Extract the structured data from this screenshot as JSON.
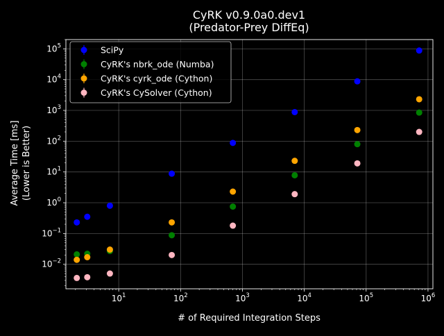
{
  "chart_data": {
    "type": "scatter",
    "title": "CyRK v0.9.0a0.dev1",
    "subtitle": "(Predator-Prey DiffEq)",
    "xlabel": "# of Required Integration Steps",
    "ylabel_line1": "Average Time [ms]",
    "ylabel_line2": "(Lower is Better)",
    "xscale": "log",
    "yscale": "log",
    "xlim": [
      1.4,
      1200000
    ],
    "ylim": [
      0.0016,
      200000
    ],
    "xticks": [
      {
        "value": 10,
        "base": "10",
        "exp": "1"
      },
      {
        "value": 100,
        "base": "10",
        "exp": "2"
      },
      {
        "value": 1000,
        "base": "10",
        "exp": "3"
      },
      {
        "value": 10000,
        "base": "10",
        "exp": "4"
      },
      {
        "value": 100000,
        "base": "10",
        "exp": "5"
      },
      {
        "value": 1000000,
        "base": "10",
        "exp": "6"
      }
    ],
    "yticks": [
      {
        "value": 0.01,
        "base": "10",
        "exp": "−2"
      },
      {
        "value": 0.1,
        "base": "10",
        "exp": "−1"
      },
      {
        "value": 1,
        "base": "10",
        "exp": "0"
      },
      {
        "value": 10,
        "base": "10",
        "exp": "1"
      },
      {
        "value": 100,
        "base": "10",
        "exp": "2"
      },
      {
        "value": 1000,
        "base": "10",
        "exp": "3"
      },
      {
        "value": 10000,
        "base": "10",
        "exp": "4"
      },
      {
        "value": 100000,
        "base": "10",
        "exp": "5"
      }
    ],
    "grid": true,
    "legend_position": "top-left",
    "series": [
      {
        "name": "SciPy",
        "color": "#0000ff",
        "points": [
          [
            2.1,
            0.23
          ],
          [
            3.1,
            0.35
          ],
          [
            7.2,
            0.8
          ],
          [
            72,
            8.8
          ],
          [
            700,
            88
          ],
          [
            7000,
            880
          ],
          [
            72000,
            8800
          ],
          [
            720000,
            88000
          ]
        ]
      },
      {
        "name": "CyRK's nbrk_ode (Numba)",
        "color": "#008000",
        "points": [
          [
            2.1,
            0.021
          ],
          [
            3.1,
            0.022
          ],
          [
            7.2,
            0.027
          ],
          [
            72,
            0.088
          ],
          [
            700,
            0.75
          ],
          [
            7000,
            7.8
          ],
          [
            72000,
            80
          ],
          [
            720000,
            850
          ]
        ]
      },
      {
        "name": "CyRK's cyrk_ode (Cython)",
        "color": "#ffa500",
        "points": [
          [
            2.1,
            0.014
          ],
          [
            3.1,
            0.017
          ],
          [
            7.2,
            0.03
          ],
          [
            72,
            0.23
          ],
          [
            700,
            2.3
          ],
          [
            7000,
            23
          ],
          [
            72000,
            230
          ],
          [
            720000,
            2300
          ]
        ]
      },
      {
        "name": "CyRK's CySolver (Cython)",
        "color": "#ffb6c1",
        "points": [
          [
            2.1,
            0.0036
          ],
          [
            3.1,
            0.0038
          ],
          [
            7.2,
            0.005
          ],
          [
            72,
            0.02
          ],
          [
            700,
            0.18
          ],
          [
            7000,
            1.9
          ],
          [
            72000,
            19
          ],
          [
            720000,
            200
          ]
        ]
      }
    ]
  }
}
